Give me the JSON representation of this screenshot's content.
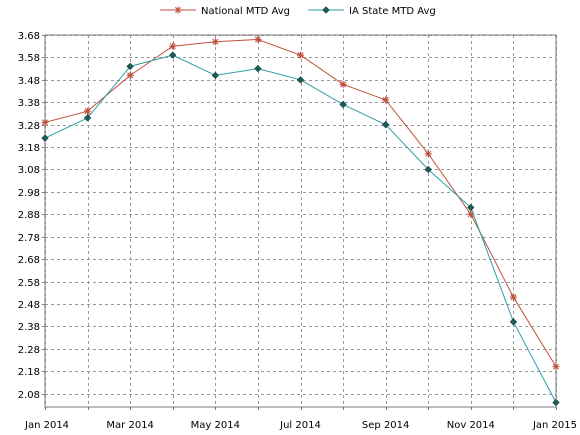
{
  "chart_data": {
    "type": "line",
    "title": "",
    "xlabel": "",
    "ylabel": "",
    "x": [
      "Jan 2014",
      "Feb 2014",
      "Mar 2014",
      "Apr 2014",
      "May 2014",
      "Jun 2014",
      "Jul 2014",
      "Aug 2014",
      "Sep 2014",
      "Oct 2014",
      "Nov 2014",
      "Dec 2014",
      "Jan 2015"
    ],
    "x_tick_labels": [
      "Jan 2014",
      "Mar 2014",
      "May 2014",
      "Jul 2014",
      "Sep 2014",
      "Nov 2014",
      "Jan 2015"
    ],
    "y_ticks": [
      2.08,
      2.18,
      2.28,
      2.38,
      2.48,
      2.58,
      2.68,
      2.78,
      2.88,
      2.98,
      3.08,
      3.18,
      3.28,
      3.38,
      3.48,
      3.58,
      3.68
    ],
    "ylim": [
      2.02,
      3.68
    ],
    "grid": true,
    "legend_position": "top-center",
    "series": [
      {
        "name": "National MTD Avg",
        "color": "#c0503c",
        "marker": "asterisk",
        "values": [
          3.29,
          3.34,
          3.5,
          3.63,
          3.65,
          3.66,
          3.59,
          3.46,
          3.39,
          3.15,
          2.88,
          2.51,
          2.2
        ]
      },
      {
        "name": "IA State MTD Avg",
        "color": "#2e9fa6",
        "marker": "diamond",
        "values": [
          3.22,
          3.31,
          3.54,
          3.59,
          3.5,
          3.53,
          3.48,
          3.37,
          3.28,
          3.08,
          2.91,
          2.4,
          2.04
        ]
      }
    ]
  }
}
